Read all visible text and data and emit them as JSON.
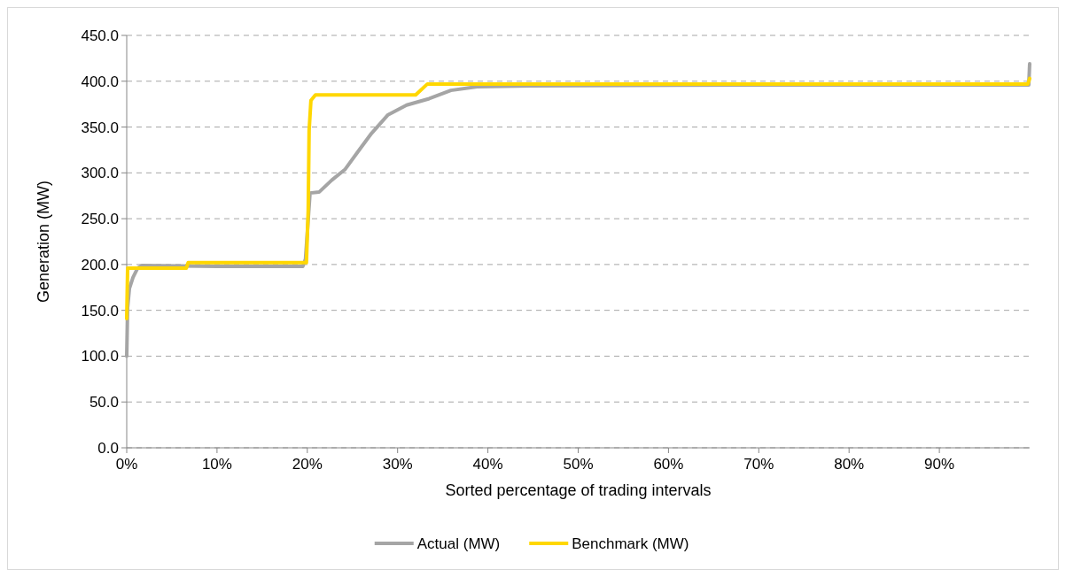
{
  "chart_data": {
    "type": "line",
    "xlabel": "Sorted percentage of trading intervals",
    "ylabel": "Generation (MW)",
    "xlim": [
      0,
      100
    ],
    "xticks": [
      {
        "value": 0,
        "label": "0%"
      },
      {
        "value": 10,
        "label": "10%"
      },
      {
        "value": 20,
        "label": "20%"
      },
      {
        "value": 30,
        "label": "30%"
      },
      {
        "value": 40,
        "label": "40%"
      },
      {
        "value": 50,
        "label": "50%"
      },
      {
        "value": 60,
        "label": "60%"
      },
      {
        "value": 70,
        "label": "70%"
      },
      {
        "value": 80,
        "label": "80%"
      },
      {
        "value": 90,
        "label": "90%"
      }
    ],
    "ylim": [
      0,
      450
    ],
    "yticks": [
      {
        "value": 0,
        "label": "0.0"
      },
      {
        "value": 50,
        "label": "50.0"
      },
      {
        "value": 100,
        "label": "100.0"
      },
      {
        "value": 150,
        "label": "150.0"
      },
      {
        "value": 200,
        "label": "200.0"
      },
      {
        "value": 250,
        "label": "250.0"
      },
      {
        "value": 300,
        "label": "300.0"
      },
      {
        "value": 350,
        "label": "350.0"
      },
      {
        "value": 400,
        "label": "400.0"
      },
      {
        "value": 450,
        "label": "450.0"
      }
    ],
    "grid": "y",
    "legend": "bottom",
    "series": [
      {
        "name": "Actual (MW)",
        "color": "#a5a5a5",
        "x": [
          0,
          0.1,
          0.3,
          0.7,
          1.2,
          1.7,
          10,
          19.5,
          19.8,
          20.3,
          21.3,
          22.7,
          24.2,
          25.6,
          27.1,
          28.9,
          31,
          33.5,
          35.9,
          38.8,
          44.7,
          70,
          99.9,
          100
        ],
        "values": [
          100,
          153,
          174,
          186,
          196,
          199,
          198,
          198,
          206,
          278,
          279,
          292,
          304,
          323,
          343,
          363,
          374,
          381,
          390,
          394,
          395,
          396,
          396,
          419
        ]
      },
      {
        "name": "Benchmark (MW)",
        "color": "#ffd700",
        "x": [
          0,
          0.1,
          6.6,
          6.8,
          19.9,
          20.1,
          20.2,
          20.4,
          20.9,
          32,
          33.3,
          99.8,
          100
        ],
        "values": [
          141,
          196,
          196,
          202,
          202,
          259,
          346,
          379,
          385,
          385,
          397,
          397,
          403
        ]
      }
    ]
  }
}
